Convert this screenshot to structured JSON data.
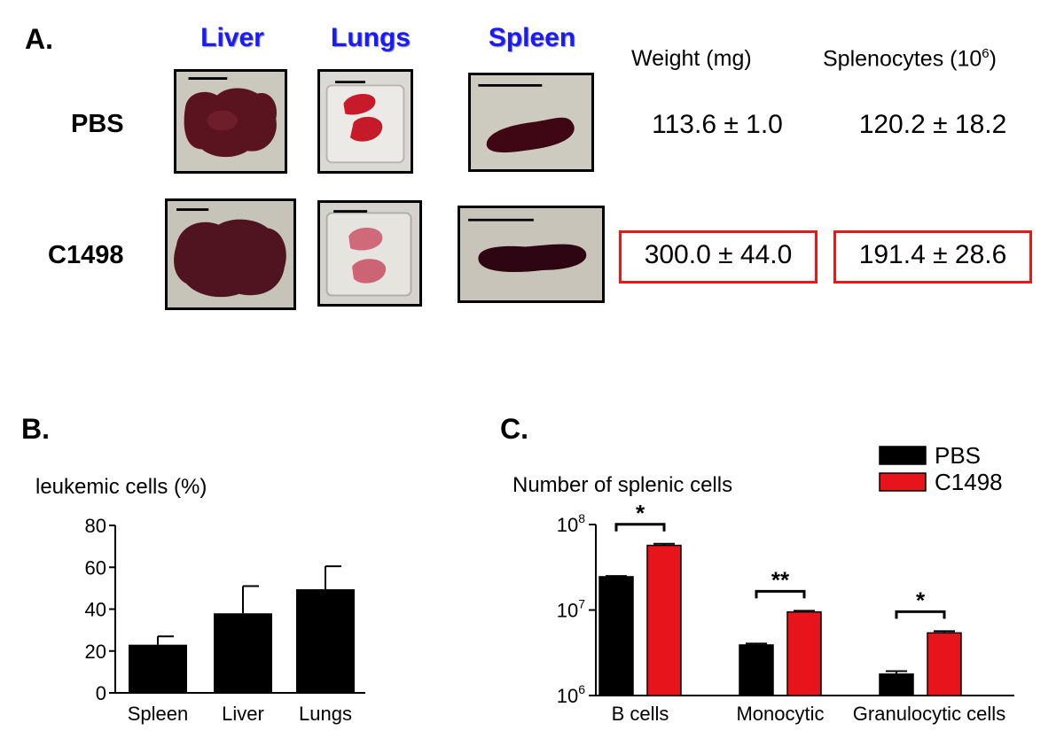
{
  "panel_a": {
    "label": "A.",
    "organs": [
      "Liver",
      "Lungs",
      "Spleen"
    ],
    "columns": {
      "weight": "Weight (mg)",
      "splenocytes_base": "Splenocytes (10",
      "splenocytes_exp": "6",
      "splenocytes_close": ")"
    },
    "rows": [
      {
        "label": "PBS",
        "weight": "113.6 ± 1.0",
        "splenocytes": "120.2 ± 18.2"
      },
      {
        "label": "C1498",
        "weight": "300.0 ± 44.0",
        "splenocytes": "191.4 ± 28.6"
      }
    ],
    "highlight_color": "#e31b1b",
    "organ_header_color": "#1a1aff"
  },
  "panel_b": {
    "label": "B.",
    "ylabel": "leukemic cells (%)"
  },
  "panel_c": {
    "label": "C.",
    "ylabel": "Number of splenic cells",
    "legend": [
      "PBS",
      "C1498"
    ],
    "colors": {
      "PBS": "#000000",
      "C1498": "#e8141c"
    }
  },
  "chart_data": [
    {
      "type": "bar",
      "panel": "B",
      "title": "",
      "ylabel": "leukemic cells (%)",
      "xlabel": "",
      "categories": [
        "Spleen",
        "Liver",
        "Lungs"
      ],
      "values": [
        23,
        38,
        49.5
      ],
      "errors": [
        4,
        13,
        11
      ],
      "ylim": [
        0,
        80
      ],
      "yticks": [
        0,
        20,
        40,
        60,
        80
      ],
      "color": "#000000"
    },
    {
      "type": "bar",
      "panel": "C",
      "title": "",
      "ylabel": "Number of splenic cells",
      "xlabel": "",
      "yscale": "log",
      "ylim": [
        1000000,
        100000000
      ],
      "ytick_labels": [
        {
          "base": "10",
          "exp": "6"
        },
        {
          "base": "10",
          "exp": "7"
        },
        {
          "base": "10",
          "exp": "8"
        }
      ],
      "categories": [
        "B cells",
        "Monocytic",
        "Granulocytic cells"
      ],
      "series": [
        {
          "name": "PBS",
          "values": [
            24500000,
            3900000,
            1780000
          ],
          "errors": [
            500000,
            150000,
            150000
          ]
        },
        {
          "name": "C1498",
          "values": [
            57000000,
            9500000,
            5400000
          ],
          "errors": [
            2500000,
            300000,
            250000
          ]
        }
      ],
      "significance": [
        "*",
        "**",
        "*"
      ],
      "legend_position": "top-right"
    }
  ]
}
